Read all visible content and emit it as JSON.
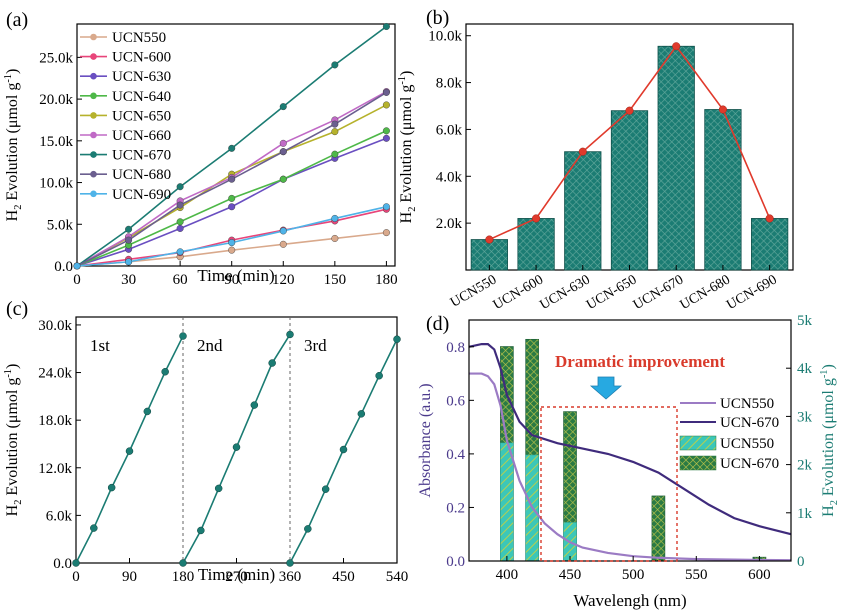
{
  "chart_data": [
    {
      "panel_label": "(a)",
      "type": "line",
      "xlabel": "Time (min)",
      "ylabel": "H2 Evolution (μmol g-1)",
      "ylabel_parts": {
        "prefix": "H",
        "sub": "2",
        "mid": " Evolution (μmol g",
        "sup": "-1",
        "suffix": ")"
      },
      "xlim": [
        0,
        185
      ],
      "ylim": [
        0,
        29000
      ],
      "xticks": [
        0,
        30,
        60,
        90,
        120,
        150,
        180
      ],
      "yticks": [
        0,
        5000,
        10000,
        15000,
        20000,
        25000
      ],
      "ytick_labels": [
        "0.0",
        "5.0k",
        "10.0k",
        "15.0k",
        "20.0k",
        "25.0k"
      ],
      "legend_position": "top-left",
      "x": [
        0,
        30,
        60,
        90,
        120,
        150,
        180
      ],
      "series": [
        {
          "name": "UCN550",
          "color": "#d9a98c",
          "values": [
            0,
            500,
            1100,
            1900,
            2600,
            3300,
            4000
          ]
        },
        {
          "name": "UCN-600",
          "color": "#e8457a",
          "values": [
            0,
            800,
            1600,
            3100,
            4300,
            5400,
            6800
          ]
        },
        {
          "name": "UCN-630",
          "color": "#6a4fc1",
          "values": [
            0,
            2000,
            4500,
            7100,
            10400,
            12900,
            15300
          ]
        },
        {
          "name": "UCN-640",
          "color": "#4eb848",
          "values": [
            0,
            2500,
            5300,
            8100,
            10400,
            13400,
            16200
          ]
        },
        {
          "name": "UCN-650",
          "color": "#b6b22c",
          "values": [
            0,
            3400,
            7000,
            11000,
            13700,
            16100,
            19300
          ]
        },
        {
          "name": "UCN-660",
          "color": "#c06ac6",
          "values": [
            0,
            3500,
            7800,
            10600,
            14700,
            17500,
            20900
          ]
        },
        {
          "name": "UCN-670",
          "color": "#1b7c73",
          "values": [
            0,
            4400,
            9500,
            14100,
            19100,
            24100,
            28700
          ]
        },
        {
          "name": "UCN-680",
          "color": "#6b5f8f",
          "values": [
            0,
            3100,
            7300,
            10400,
            13700,
            17000,
            20800
          ]
        },
        {
          "name": "UCN-690",
          "color": "#4fb3e8",
          "values": [
            0,
            500,
            1700,
            2800,
            4200,
            5700,
            7100
          ]
        }
      ]
    },
    {
      "panel_label": "(b)",
      "type": "bar",
      "ylabel": "H2 Evolution (μmol g-1)",
      "ylabel_parts": {
        "prefix": "H",
        "sub": "2",
        "mid": " Evolution (μmol g",
        "sup": "-1",
        "suffix": ")"
      },
      "categories": [
        "UCN550",
        "UCN-600",
        "UCN-630",
        "UCN-650",
        "UCN-670",
        "UCN-680",
        "UCN-690"
      ],
      "values": [
        1300,
        2200,
        5050,
        6800,
        9550,
        6850,
        2200
      ],
      "ylim": [
        0,
        10500
      ],
      "yticks": [
        2000,
        4000,
        6000,
        8000,
        10000
      ],
      "ytick_labels": [
        "2.0k",
        "4.0k",
        "6.0k",
        "8.0k",
        "10.0k"
      ],
      "bar_color": "#1b7c73",
      "line_color": "#e03a2c"
    },
    {
      "panel_label": "(c)",
      "type": "line",
      "xlabel": "Time (min)",
      "ylabel": "H2 Evolution (μmol g-1)",
      "ylabel_parts": {
        "prefix": "H",
        "sub": "2",
        "mid": " Evolution (μmol g",
        "sup": "-1",
        "suffix": ")"
      },
      "xlim": [
        0,
        540
      ],
      "ylim": [
        0,
        31000
      ],
      "xticks": [
        0,
        90,
        180,
        270,
        360,
        450,
        540
      ],
      "yticks": [
        0,
        6000,
        12000,
        18000,
        24000,
        30000
      ],
      "ytick_labels": [
        "0.0",
        "6.0k",
        "12.0k",
        "18.0k",
        "24.0k",
        "30.0k"
      ],
      "cycle_dividers": [
        180,
        360
      ],
      "cycle_labels": [
        "1st",
        "2nd",
        "3rd"
      ],
      "color": "#1b7c73",
      "cycles": [
        {
          "x": [
            0,
            30,
            60,
            90,
            120,
            150,
            180
          ],
          "y": [
            0,
            4400,
            9500,
            14100,
            19100,
            24100,
            28600
          ]
        },
        {
          "x": [
            180,
            210,
            240,
            270,
            300,
            330,
            360
          ],
          "y": [
            0,
            4100,
            9400,
            14600,
            19900,
            25200,
            28800
          ]
        },
        {
          "x": [
            360,
            390,
            420,
            450,
            480,
            510,
            540
          ],
          "y": [
            0,
            4300,
            9300,
            14300,
            18800,
            23600,
            28200
          ]
        }
      ]
    },
    {
      "panel_label": "(d)",
      "type": "line+bar",
      "xlabel": "Wavelengh (nm)",
      "ylabel_left": "Absorbance (a.u.)",
      "ylabel_right": "H2 Evolution (μmol g-1)",
      "ylabel_right_parts": {
        "prefix": "H",
        "sub": "2",
        "mid": " Evolution (μmol g",
        "sup": "-1",
        "suffix": ")"
      },
      "xlim": [
        370,
        625
      ],
      "ylim_left": [
        0,
        0.9
      ],
      "ylim_right": [
        0,
        5000
      ],
      "xticks": [
        400,
        450,
        500,
        550,
        600
      ],
      "yticks_left": [
        0.0,
        0.2,
        0.4,
        0.6,
        0.8
      ],
      "ytick_labels_left": [
        "0.0",
        "0.2",
        "0.4",
        "0.6",
        "0.8"
      ],
      "yticks_right": [
        0,
        1000,
        2000,
        3000,
        4000,
        5000
      ],
      "ytick_labels_right": [
        "0",
        "1k",
        "2k",
        "3k",
        "4k",
        "5k"
      ],
      "annotation": "Dramatic improvement",
      "annotation_color": "#d93a2b",
      "legend_position": "right",
      "absorbance": [
        {
          "name": "UCN550",
          "color": "#9b7bc4",
          "x": [
            370,
            380,
            385,
            390,
            395,
            400,
            410,
            420,
            430,
            440,
            450,
            460,
            480,
            500,
            520,
            550,
            580,
            600,
            625
          ],
          "y": [
            0.7,
            0.7,
            0.69,
            0.66,
            0.58,
            0.45,
            0.3,
            0.2,
            0.14,
            0.1,
            0.07,
            0.05,
            0.03,
            0.018,
            0.012,
            0.007,
            0.005,
            0.004,
            0.003
          ]
        },
        {
          "name": "UCN-670",
          "color": "#3f2b7c",
          "x": [
            370,
            380,
            385,
            390,
            395,
            400,
            410,
            420,
            440,
            460,
            480,
            500,
            520,
            540,
            560,
            580,
            600,
            625
          ],
          "y": [
            0.8,
            0.81,
            0.81,
            0.79,
            0.72,
            0.62,
            0.52,
            0.47,
            0.44,
            0.42,
            0.4,
            0.37,
            0.33,
            0.27,
            0.21,
            0.16,
            0.13,
            0.1
          ]
        }
      ],
      "bars": [
        {
          "name": "UCN550",
          "color": "#3cc7b8",
          "x": [
            400,
            420,
            450,
            520,
            600
          ],
          "values": [
            2450,
            2200,
            800,
            0,
            0
          ]
        },
        {
          "name": "UCN-670",
          "color": "#1b7c73",
          "x": [
            400,
            420,
            450,
            520,
            600
          ],
          "values": [
            4450,
            4600,
            3100,
            1350,
            80
          ]
        }
      ]
    }
  ]
}
